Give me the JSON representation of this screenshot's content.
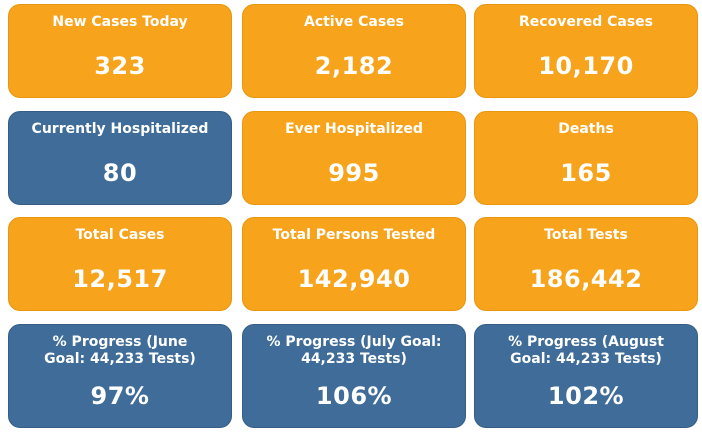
{
  "tiles": [
    {
      "label": "New Cases Today",
      "value": "323",
      "color": "#f7a31c"
    },
    {
      "label": "Active Cases",
      "value": "2,182",
      "color": "#f7a31c"
    },
    {
      "label": "Recovered Cases",
      "value": "10,170",
      "color": "#f7a31c"
    },
    {
      "label": "Currently Hospitalized",
      "value": "80",
      "color": "#3f6c98"
    },
    {
      "label": "Ever Hospitalized",
      "value": "995",
      "color": "#f7a31c"
    },
    {
      "label": "Deaths",
      "value": "165",
      "color": "#f7a31c"
    },
    {
      "label": "Total Cases",
      "value": "12,517",
      "color": "#f7a31c"
    },
    {
      "label": "Total Persons Tested",
      "value": "142,940",
      "color": "#f7a31c"
    },
    {
      "label": "Total Tests",
      "value": "186,442",
      "color": "#f7a31c"
    },
    {
      "label": "% Progress (June Goal: 44,233 Tests)",
      "value": "97%",
      "color": "#3f6c98"
    },
    {
      "label": "% Progress (July Goal: 44,233 Tests)",
      "value": "106%",
      "color": "#3f6c98"
    },
    {
      "label": "% Progress (August Goal: 44,233 Tests)",
      "value": "102%",
      "color": "#3f6c98"
    }
  ]
}
